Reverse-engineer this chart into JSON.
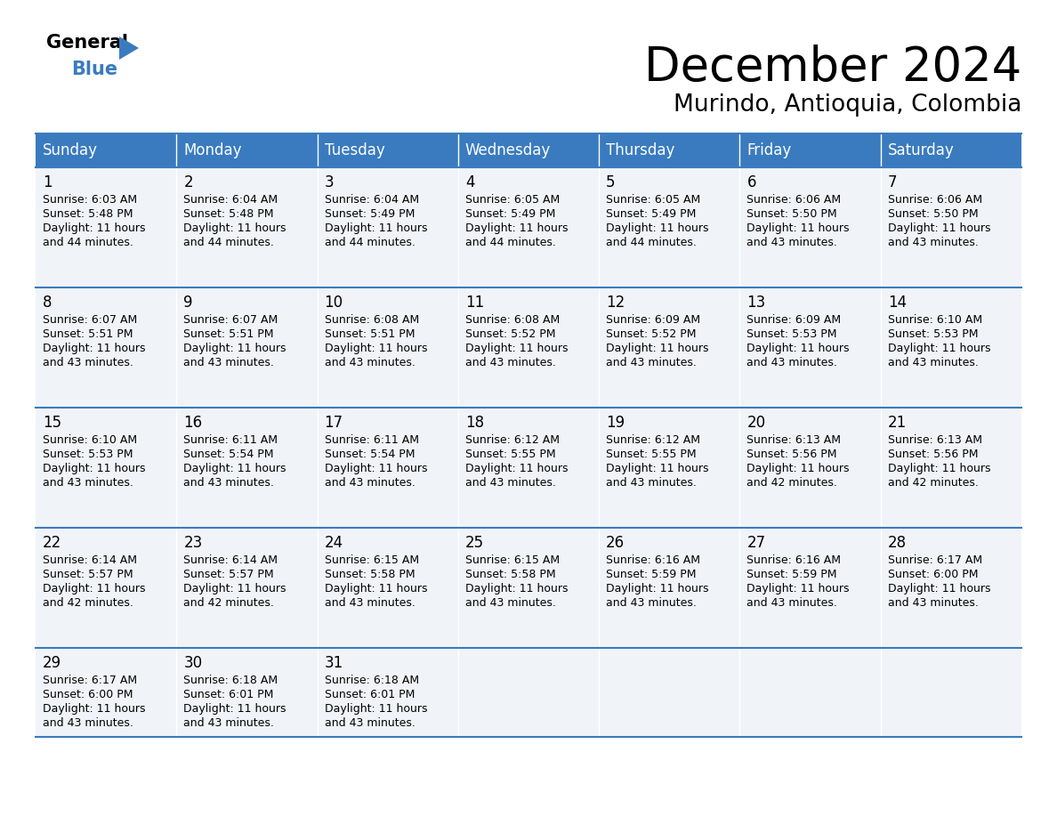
{
  "title": "December 2024",
  "subtitle": "Murindo, Antioquia, Colombia",
  "header_color": "#3a7bbf",
  "header_text_color": "#ffffff",
  "cell_bg_odd": "#f0f4f8",
  "cell_bg_even": "#ffffff",
  "border_color": "#3a7bbf",
  "day_headers": [
    "Sunday",
    "Monday",
    "Tuesday",
    "Wednesday",
    "Thursday",
    "Friday",
    "Saturday"
  ],
  "calendar_data": [
    [
      {
        "day": 1,
        "sunrise": "6:03 AM",
        "sunset": "5:48 PM",
        "daylight_line1": "Daylight: 11 hours",
        "daylight_line2": "and 44 minutes."
      },
      {
        "day": 2,
        "sunrise": "6:04 AM",
        "sunset": "5:48 PM",
        "daylight_line1": "Daylight: 11 hours",
        "daylight_line2": "and 44 minutes."
      },
      {
        "day": 3,
        "sunrise": "6:04 AM",
        "sunset": "5:49 PM",
        "daylight_line1": "Daylight: 11 hours",
        "daylight_line2": "and 44 minutes."
      },
      {
        "day": 4,
        "sunrise": "6:05 AM",
        "sunset": "5:49 PM",
        "daylight_line1": "Daylight: 11 hours",
        "daylight_line2": "and 44 minutes."
      },
      {
        "day": 5,
        "sunrise": "6:05 AM",
        "sunset": "5:49 PM",
        "daylight_line1": "Daylight: 11 hours",
        "daylight_line2": "and 44 minutes."
      },
      {
        "day": 6,
        "sunrise": "6:06 AM",
        "sunset": "5:50 PM",
        "daylight_line1": "Daylight: 11 hours",
        "daylight_line2": "and 43 minutes."
      },
      {
        "day": 7,
        "sunrise": "6:06 AM",
        "sunset": "5:50 PM",
        "daylight_line1": "Daylight: 11 hours",
        "daylight_line2": "and 43 minutes."
      }
    ],
    [
      {
        "day": 8,
        "sunrise": "6:07 AM",
        "sunset": "5:51 PM",
        "daylight_line1": "Daylight: 11 hours",
        "daylight_line2": "and 43 minutes."
      },
      {
        "day": 9,
        "sunrise": "6:07 AM",
        "sunset": "5:51 PM",
        "daylight_line1": "Daylight: 11 hours",
        "daylight_line2": "and 43 minutes."
      },
      {
        "day": 10,
        "sunrise": "6:08 AM",
        "sunset": "5:51 PM",
        "daylight_line1": "Daylight: 11 hours",
        "daylight_line2": "and 43 minutes."
      },
      {
        "day": 11,
        "sunrise": "6:08 AM",
        "sunset": "5:52 PM",
        "daylight_line1": "Daylight: 11 hours",
        "daylight_line2": "and 43 minutes."
      },
      {
        "day": 12,
        "sunrise": "6:09 AM",
        "sunset": "5:52 PM",
        "daylight_line1": "Daylight: 11 hours",
        "daylight_line2": "and 43 minutes."
      },
      {
        "day": 13,
        "sunrise": "6:09 AM",
        "sunset": "5:53 PM",
        "daylight_line1": "Daylight: 11 hours",
        "daylight_line2": "and 43 minutes."
      },
      {
        "day": 14,
        "sunrise": "6:10 AM",
        "sunset": "5:53 PM",
        "daylight_line1": "Daylight: 11 hours",
        "daylight_line2": "and 43 minutes."
      }
    ],
    [
      {
        "day": 15,
        "sunrise": "6:10 AM",
        "sunset": "5:53 PM",
        "daylight_line1": "Daylight: 11 hours",
        "daylight_line2": "and 43 minutes."
      },
      {
        "day": 16,
        "sunrise": "6:11 AM",
        "sunset": "5:54 PM",
        "daylight_line1": "Daylight: 11 hours",
        "daylight_line2": "and 43 minutes."
      },
      {
        "day": 17,
        "sunrise": "6:11 AM",
        "sunset": "5:54 PM",
        "daylight_line1": "Daylight: 11 hours",
        "daylight_line2": "and 43 minutes."
      },
      {
        "day": 18,
        "sunrise": "6:12 AM",
        "sunset": "5:55 PM",
        "daylight_line1": "Daylight: 11 hours",
        "daylight_line2": "and 43 minutes."
      },
      {
        "day": 19,
        "sunrise": "6:12 AM",
        "sunset": "5:55 PM",
        "daylight_line1": "Daylight: 11 hours",
        "daylight_line2": "and 43 minutes."
      },
      {
        "day": 20,
        "sunrise": "6:13 AM",
        "sunset": "5:56 PM",
        "daylight_line1": "Daylight: 11 hours",
        "daylight_line2": "and 42 minutes."
      },
      {
        "day": 21,
        "sunrise": "6:13 AM",
        "sunset": "5:56 PM",
        "daylight_line1": "Daylight: 11 hours",
        "daylight_line2": "and 42 minutes."
      }
    ],
    [
      {
        "day": 22,
        "sunrise": "6:14 AM",
        "sunset": "5:57 PM",
        "daylight_line1": "Daylight: 11 hours",
        "daylight_line2": "and 42 minutes."
      },
      {
        "day": 23,
        "sunrise": "6:14 AM",
        "sunset": "5:57 PM",
        "daylight_line1": "Daylight: 11 hours",
        "daylight_line2": "and 42 minutes."
      },
      {
        "day": 24,
        "sunrise": "6:15 AM",
        "sunset": "5:58 PM",
        "daylight_line1": "Daylight: 11 hours",
        "daylight_line2": "and 43 minutes."
      },
      {
        "day": 25,
        "sunrise": "6:15 AM",
        "sunset": "5:58 PM",
        "daylight_line1": "Daylight: 11 hours",
        "daylight_line2": "and 43 minutes."
      },
      {
        "day": 26,
        "sunrise": "6:16 AM",
        "sunset": "5:59 PM",
        "daylight_line1": "Daylight: 11 hours",
        "daylight_line2": "and 43 minutes."
      },
      {
        "day": 27,
        "sunrise": "6:16 AM",
        "sunset": "5:59 PM",
        "daylight_line1": "Daylight: 11 hours",
        "daylight_line2": "and 43 minutes."
      },
      {
        "day": 28,
        "sunrise": "6:17 AM",
        "sunset": "6:00 PM",
        "daylight_line1": "Daylight: 11 hours",
        "daylight_line2": "and 43 minutes."
      }
    ],
    [
      {
        "day": 29,
        "sunrise": "6:17 AM",
        "sunset": "6:00 PM",
        "daylight_line1": "Daylight: 11 hours",
        "daylight_line2": "and 43 minutes."
      },
      {
        "day": 30,
        "sunrise": "6:18 AM",
        "sunset": "6:01 PM",
        "daylight_line1": "Daylight: 11 hours",
        "daylight_line2": "and 43 minutes."
      },
      {
        "day": 31,
        "sunrise": "6:18 AM",
        "sunset": "6:01 PM",
        "daylight_line1": "Daylight: 11 hours",
        "daylight_line2": "and 43 minutes."
      },
      null,
      null,
      null,
      null
    ]
  ],
  "title_fontsize": 38,
  "subtitle_fontsize": 19,
  "header_fontsize": 12,
  "day_num_fontsize": 12,
  "cell_text_fontsize": 9
}
